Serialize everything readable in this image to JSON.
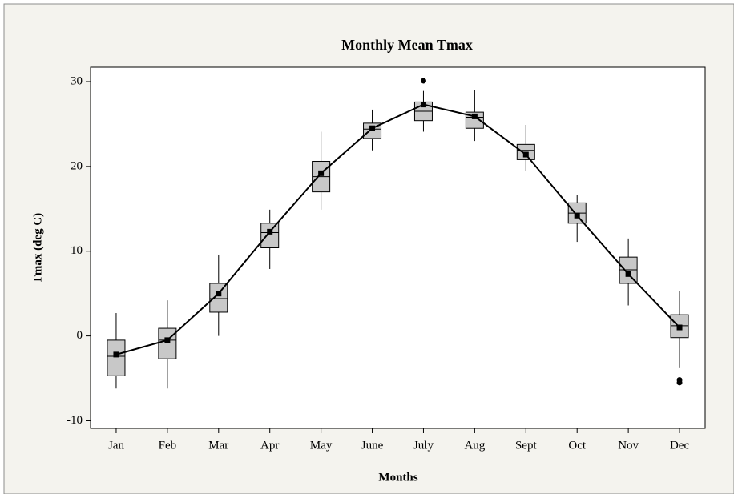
{
  "chart_data": {
    "type": "box",
    "title": "Monthly Mean Tmax",
    "x_label": "Months",
    "y_label": "Tmax (deg C)",
    "categories": [
      "Jan",
      "Feb",
      "Mar",
      "Apr",
      "May",
      "June",
      "July",
      "Aug",
      "Sept",
      "Oct",
      "Nov",
      "Dec"
    ],
    "boxes": [
      {
        "whisker_low": -6.2,
        "q1": -4.7,
        "median": -2.4,
        "q3": -0.5,
        "whisker_high": 2.7,
        "outliers": []
      },
      {
        "whisker_low": -6.2,
        "q1": -2.7,
        "median": -0.5,
        "q3": 0.9,
        "whisker_high": 4.2,
        "outliers": []
      },
      {
        "whisker_low": 0,
        "q1": 2.8,
        "median": 4.4,
        "q3": 6.2,
        "whisker_high": 9.6,
        "outliers": []
      },
      {
        "whisker_low": 7.9,
        "q1": 10.4,
        "median": 12.2,
        "q3": 13.3,
        "whisker_high": 14.9,
        "outliers": []
      },
      {
        "whisker_low": 14.9,
        "q1": 17.0,
        "median": 18.8,
        "q3": 20.6,
        "whisker_high": 24.1,
        "outliers": []
      },
      {
        "whisker_low": 21.9,
        "q1": 23.3,
        "median": 24.4,
        "q3": 25.1,
        "whisker_high": 26.7,
        "outliers": []
      },
      {
        "whisker_low": 24.1,
        "q1": 25.4,
        "median": 26.5,
        "q3": 27.6,
        "whisker_high": 28.9,
        "outliers": [
          30.1
        ]
      },
      {
        "whisker_low": 23.0,
        "q1": 24.5,
        "median": 25.8,
        "q3": 26.4,
        "whisker_high": 29.0,
        "outliers": []
      },
      {
        "whisker_low": 19.5,
        "q1": 20.8,
        "median": 21.9,
        "q3": 22.6,
        "whisker_high": 24.9,
        "outliers": []
      },
      {
        "whisker_low": 11.1,
        "q1": 13.3,
        "median": 14.5,
        "q3": 15.7,
        "whisker_high": 16.6,
        "outliers": []
      },
      {
        "whisker_low": 3.6,
        "q1": 6.2,
        "median": 7.8,
        "q3": 9.3,
        "whisker_high": 11.5,
        "outliers": []
      },
      {
        "whisker_low": -3.8,
        "q1": -0.2,
        "median": 1.2,
        "q3": 2.5,
        "whisker_high": 5.3,
        "outliers": [
          -5.2,
          -5.5
        ]
      }
    ],
    "means": [
      -2.2,
      -0.5,
      5.0,
      12.3,
      19.2,
      24.5,
      27.3,
      25.9,
      21.4,
      14.2,
      7.3,
      1.0
    ],
    "box_color": "#c8c8c8",
    "mean_color": "#000000",
    "ylim": [
      -10.9,
      31.7
    ],
    "yticks": [
      -10,
      0,
      10,
      20,
      30
    ]
  }
}
